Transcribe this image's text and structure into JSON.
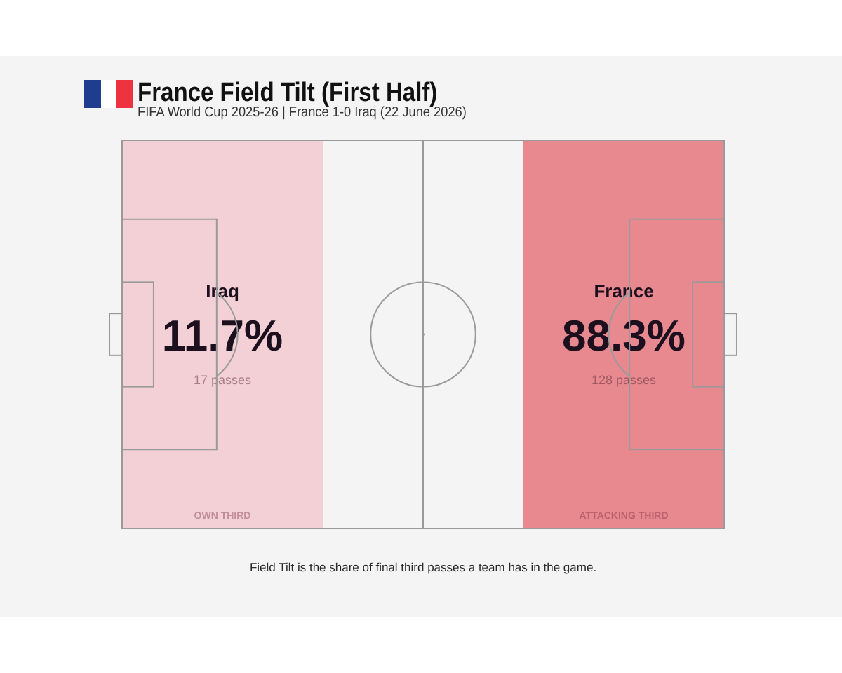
{
  "chart_data": {
    "type": "other",
    "title": "France Field Tilt (First Half)",
    "subtitle": "FIFA World Cup 2025-26 | France 1-0 Iraq (22 June 2026)",
    "categories": [
      "Iraq",
      "France"
    ],
    "series": [
      {
        "values": [
          11.7,
          88.3
        ],
        "colors": [
          "#f2d0d6",
          "#e8898f"
        ],
        "value_labels": [
          "11.7%",
          "88.3%"
        ]
      },
      {
        "values": [
          17,
          128
        ],
        "value_labels": [
          "17 passes",
          "128 passes"
        ]
      }
    ],
    "annotations": [
      {
        "text": "OWN THIRD",
        "x": "Iraq"
      },
      {
        "text": "ATTACKING THIRD",
        "x": "France"
      },
      "Field Tilt is the share of final third passes a team has in the game."
    ]
  }
}
